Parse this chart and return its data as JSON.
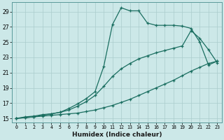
{
  "xlabel": "Humidex (Indice chaleur)",
  "xlim": [
    -0.5,
    23.5
  ],
  "ylim": [
    14.5,
    30.2
  ],
  "yticks": [
    15,
    17,
    19,
    21,
    23,
    25,
    27,
    29
  ],
  "xticks": [
    0,
    1,
    2,
    3,
    4,
    5,
    6,
    7,
    8,
    9,
    10,
    11,
    12,
    13,
    14,
    15,
    16,
    17,
    18,
    19,
    20,
    21,
    22,
    23
  ],
  "bg_color": "#cce8e8",
  "grid_color": "#aacccc",
  "line_color": "#1a6e60",
  "curve1_x": [
    0,
    1,
    2,
    3,
    4,
    5,
    6,
    7,
    8,
    9,
    10,
    11,
    12,
    13,
    14,
    15,
    16,
    17,
    18,
    19,
    20,
    21,
    22,
    23
  ],
  "curve1_y": [
    15.0,
    15.1,
    15.2,
    15.3,
    15.4,
    15.5,
    15.6,
    15.7,
    15.9,
    16.1,
    16.4,
    16.7,
    17.1,
    17.5,
    18.0,
    18.5,
    19.0,
    19.5,
    20.0,
    20.6,
    21.2,
    21.7,
    22.2,
    22.5
  ],
  "curve2_x": [
    0,
    1,
    2,
    3,
    4,
    5,
    6,
    7,
    8,
    9,
    10,
    11,
    12,
    13,
    14,
    15,
    16,
    17,
    18,
    19,
    20,
    21,
    22,
    23
  ],
  "curve2_y": [
    15.0,
    15.2,
    15.3,
    15.5,
    15.6,
    15.8,
    16.1,
    16.6,
    17.2,
    18.0,
    19.2,
    20.5,
    21.5,
    22.2,
    22.8,
    23.2,
    23.6,
    23.9,
    24.2,
    24.5,
    26.5,
    25.5,
    24.0,
    22.3
  ],
  "curve3_x": [
    0,
    1,
    2,
    3,
    4,
    5,
    6,
    7,
    8,
    9,
    10,
    11,
    12,
    13,
    14,
    15,
    16,
    17,
    18,
    19,
    20,
    21,
    22,
    23
  ],
  "curve3_y": [
    15.0,
    15.1,
    15.2,
    15.4,
    15.6,
    15.8,
    16.3,
    16.9,
    17.6,
    18.5,
    21.8,
    27.3,
    29.5,
    29.1,
    29.1,
    27.5,
    27.2,
    27.2,
    27.2,
    27.1,
    26.8,
    25.0,
    22.0,
    22.5
  ]
}
